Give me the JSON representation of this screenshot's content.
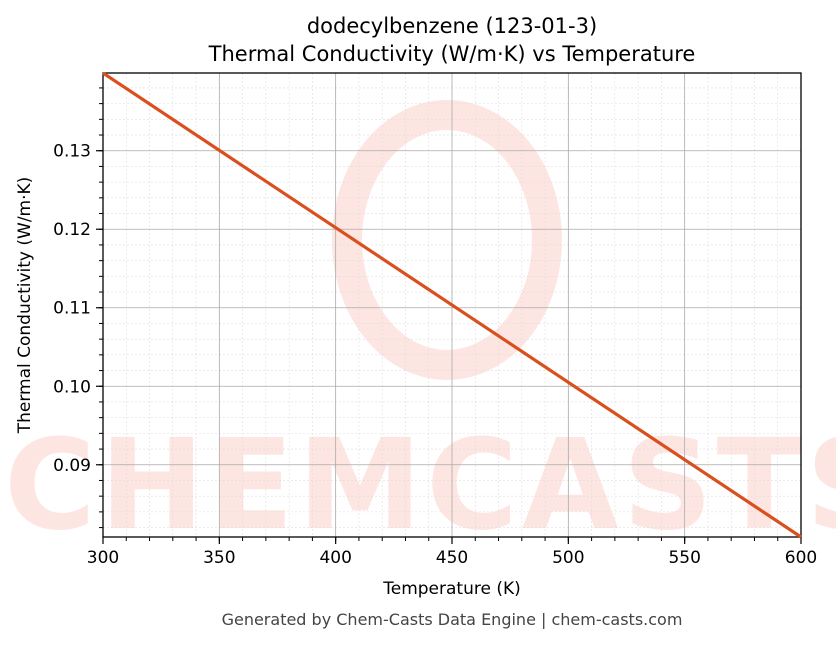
{
  "chart_data": {
    "type": "line",
    "title": "dodecylbenzene (123-01-3)",
    "subtitle": "Thermal Conductivity (W/m·K) vs Temperature",
    "xlabel": "Temperature (K)",
    "ylabel": "Thermal Conductivity (W/m·K)",
    "xlim": [
      300,
      600
    ],
    "ylim": [
      0.0808,
      0.1399
    ],
    "xticks": [
      300,
      350,
      400,
      450,
      500,
      550,
      600
    ],
    "xtick_labels": [
      "300",
      "350",
      "400",
      "450",
      "500",
      "550",
      "600"
    ],
    "yticks": [
      0.09,
      0.1,
      0.11,
      0.12,
      0.13
    ],
    "ytick_labels": [
      "0.09",
      "0.10",
      "0.11",
      "0.12",
      "0.13"
    ],
    "grid": true,
    "series": [
      {
        "name": "Thermal Conductivity",
        "color": "#d9501e",
        "x": [
          300,
          600
        ],
        "y": [
          0.1399,
          0.0808
        ]
      }
    ]
  },
  "watermark": "CHEMCASTS",
  "footer": "Generated by Chem-Casts Data Engine | chem-casts.com"
}
